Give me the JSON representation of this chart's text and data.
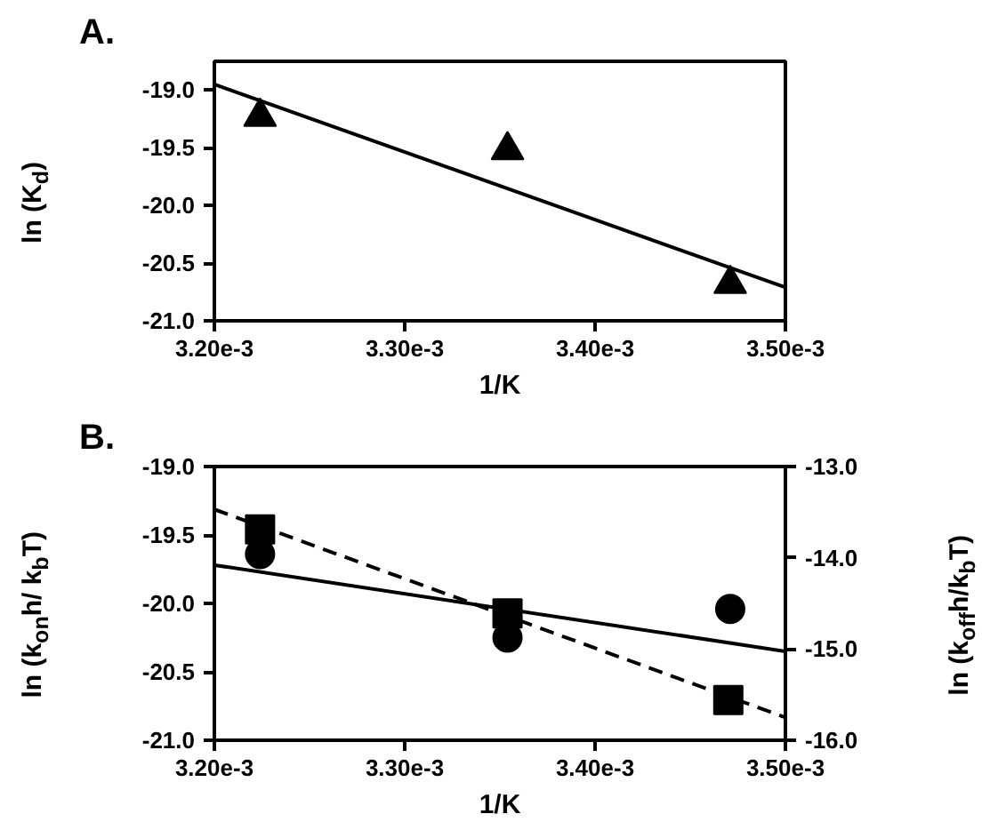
{
  "chart_data": [
    {
      "type": "scatter",
      "title": "A.",
      "xlabel": "1/K",
      "ylabel": "ln (K$_{d}$)",
      "xlim": [
        0.0032,
        0.0035
      ],
      "ylim": [
        -21,
        -18.75
      ],
      "xticks": [
        {
          "value": 0.0032,
          "label": "3.20e-3"
        },
        {
          "value": 0.0033,
          "label": "3.30e-3"
        },
        {
          "value": 0.0034,
          "label": "3.40e-3"
        },
        {
          "value": 0.0035,
          "label": "3.50e-3"
        }
      ],
      "yticks": [
        {
          "value": -21,
          "label": "-21.0"
        },
        {
          "value": -20.5,
          "label": "-20.5"
        },
        {
          "value": -20,
          "label": "-20.0"
        },
        {
          "value": -19.5,
          "label": "-19.5"
        },
        {
          "value": -19,
          "label": "-19.0"
        }
      ],
      "grid": false,
      "series": [
        {
          "marker": "triangle",
          "color": "#000000",
          "x": [
            0.003224,
            0.003354,
            0.003471
          ],
          "values": [
            -19.23,
            -19.52,
            -20.68
          ]
        },
        {
          "type": "line",
          "line_style": "solid",
          "color": "#000000",
          "x": [
            0.0032,
            0.0035
          ],
          "values": [
            -18.95,
            -20.71
          ]
        }
      ]
    },
    {
      "type": "scatter",
      "title": "B.",
      "xlabel": "1/K",
      "ylabel": "ln (k$_{on}$h/ k$_{b}$T)",
      "y2label": "ln (k$_{off}$h/k$_{b}$T)",
      "xlim": [
        0.0032,
        0.0035
      ],
      "ylim": [
        -21,
        -19
      ],
      "y2lim": [
        -16,
        -13
      ],
      "xticks": [
        {
          "value": 0.0032,
          "label": "3.20e-3"
        },
        {
          "value": 0.0033,
          "label": "3.30e-3"
        },
        {
          "value": 0.0034,
          "label": "3.40e-3"
        },
        {
          "value": 0.0035,
          "label": "3.50e-3"
        }
      ],
      "yticks": [
        {
          "value": -21,
          "label": "-21.0"
        },
        {
          "value": -20.5,
          "label": "-20.5"
        },
        {
          "value": -20,
          "label": "-20.0"
        },
        {
          "value": -19.5,
          "label": "-19.5"
        },
        {
          "value": -19,
          "label": "-19.0"
        }
      ],
      "y2ticks": [
        {
          "value": -16,
          "label": "-16.0"
        },
        {
          "value": -15,
          "label": "-15.0"
        },
        {
          "value": -14,
          "label": "-14.0"
        },
        {
          "value": -13,
          "label": "-13.0"
        }
      ],
      "grid": false,
      "series": [
        {
          "marker": "circle",
          "color": "#000000",
          "x": [
            0.003224,
            0.003354,
            0.003471
          ],
          "values": [
            -19.64,
            -20.25,
            -20.04
          ]
        },
        {
          "type": "line",
          "line_style": "solid",
          "color": "#000000",
          "x": [
            0.0032,
            0.0035
          ],
          "values": [
            -19.72,
            -20.35
          ]
        },
        {
          "marker": "square",
          "axis": "y2",
          "color": "#000000",
          "x": [
            0.003224,
            0.003354,
            0.00347
          ],
          "values": [
            -13.69,
            -14.61,
            -15.56
          ]
        },
        {
          "type": "line",
          "line_style": "dashed",
          "axis": "y2",
          "color": "#000000",
          "x": [
            0.0032,
            0.0035
          ],
          "values": [
            -13.47,
            -15.75
          ]
        }
      ]
    }
  ]
}
